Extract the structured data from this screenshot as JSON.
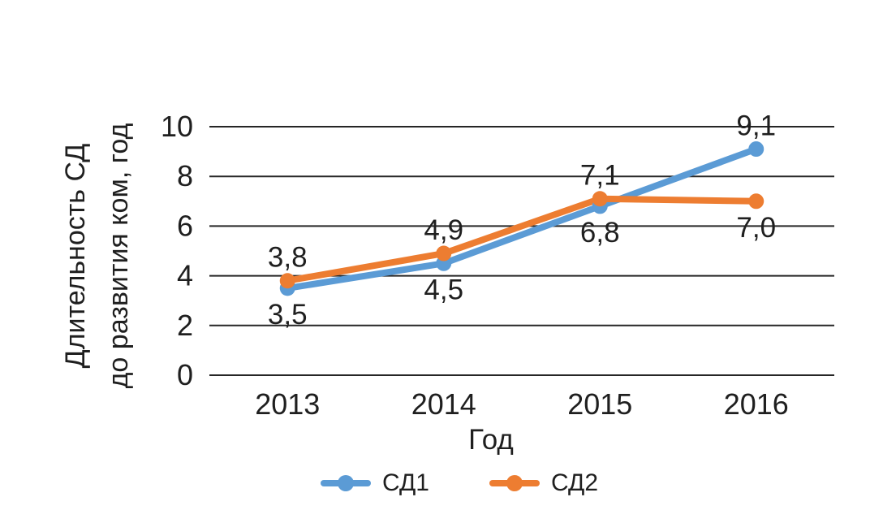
{
  "chart_data": {
    "type": "line",
    "categories": [
      "2013",
      "2014",
      "2015",
      "2016"
    ],
    "xlabel": "Год",
    "ylabel": "Длительность СД до развития ком, год",
    "ylabel_lines": [
      "Длительность СД",
      "до развития ком, год"
    ],
    "ylim": [
      0,
      10
    ],
    "yticks": [
      0,
      2,
      4,
      6,
      8,
      10
    ],
    "grid": "horizontal",
    "legend_position": "bottom",
    "text_color": "#1f1f1f",
    "grid_color": "#262626",
    "background_color": "#ffffff",
    "series": [
      {
        "name": "СД1",
        "color": "#5B9BD5",
        "values": [
          3.5,
          4.5,
          6.8,
          9.1
        ],
        "labels": [
          "3,5",
          "4,5",
          "6,8",
          "9,1"
        ],
        "label_positions": [
          "below",
          "below",
          "below",
          "above"
        ]
      },
      {
        "name": "СД2",
        "color": "#ED7D31",
        "values": [
          3.8,
          4.9,
          7.1,
          7.0
        ],
        "labels": [
          "3,8",
          "4,9",
          "7,1",
          "7,0"
        ],
        "label_positions": [
          "above",
          "above",
          "above",
          "below"
        ]
      }
    ]
  }
}
